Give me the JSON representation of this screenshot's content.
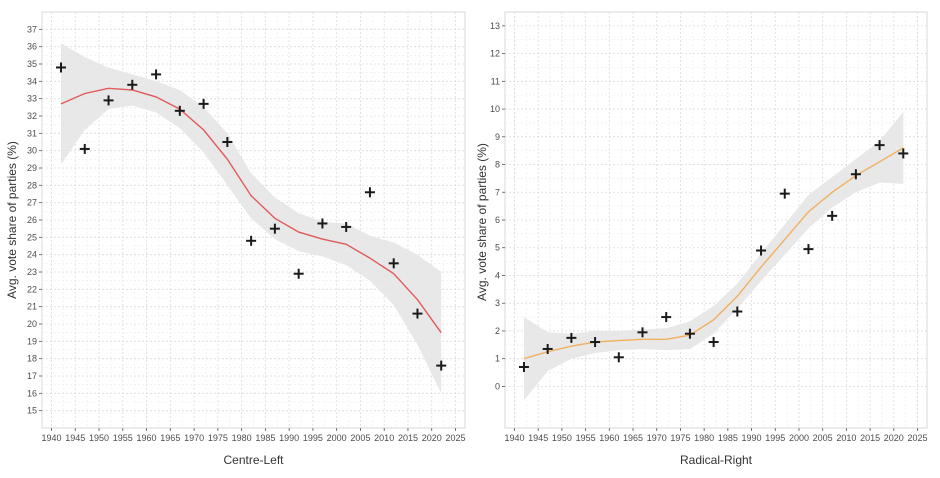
{
  "chart_data": [
    {
      "type": "scatter",
      "xlabel": "Centre-Left",
      "ylabel": "Avg. vote share of parties (%)",
      "xlim": [
        1938,
        2027
      ],
      "ylim": [
        14,
        38
      ],
      "xticks": [
        "1940",
        "1945",
        "1950",
        "1955",
        "1960",
        "1965",
        "1970",
        "1975",
        "1980",
        "1985",
        "1990",
        "1995",
        "2000",
        "2005",
        "2010",
        "2015",
        "2020",
        "2025"
      ],
      "yticks": [
        "15",
        "16",
        "17",
        "18",
        "19",
        "20",
        "21",
        "22",
        "23",
        "24",
        "25",
        "26",
        "27",
        "28",
        "29",
        "30",
        "31",
        "32",
        "33",
        "34",
        "35",
        "36",
        "37"
      ],
      "grid": true,
      "colors": {
        "smooth": "#e05a5a",
        "band": "#e6e6e6",
        "points": "#1a1a1a"
      },
      "series": [
        {
          "x": [
            1942,
            1947,
            1952,
            1957,
            1962,
            1967,
            1972,
            1977,
            1982,
            1987,
            1992,
            1997,
            2002,
            2007,
            2012,
            2017,
            2022
          ],
          "y": [
            34.8,
            30.1,
            32.9,
            33.8,
            34.4,
            32.3,
            32.7,
            30.5,
            24.8,
            25.5,
            22.9,
            25.8,
            25.6,
            27.6,
            23.5,
            20.6,
            17.6
          ]
        }
      ],
      "smooth": {
        "x": [
          1942,
          1947,
          1952,
          1957,
          1962,
          1967,
          1972,
          1977,
          1982,
          1987,
          1992,
          1997,
          2002,
          2007,
          2012,
          2017,
          2022
        ],
        "y": [
          32.7,
          33.3,
          33.6,
          33.5,
          33.1,
          32.4,
          31.2,
          29.5,
          27.4,
          26.1,
          25.3,
          24.9,
          24.6,
          23.8,
          22.9,
          21.4,
          19.5
        ],
        "lower": [
          29.2,
          31.2,
          32.4,
          32.6,
          32.2,
          31.3,
          29.9,
          28.0,
          26.1,
          24.9,
          24.2,
          23.9,
          23.4,
          22.5,
          21.1,
          18.8,
          16.0
        ],
        "upper": [
          36.2,
          35.4,
          34.8,
          34.4,
          34.0,
          33.5,
          32.5,
          31.0,
          28.7,
          27.3,
          26.4,
          25.9,
          25.8,
          25.1,
          24.7,
          24.0,
          23.0
        ]
      }
    },
    {
      "type": "scatter",
      "xlabel": "Radical-Right",
      "ylabel": "Avg. vote share of parties (%)",
      "xlim": [
        1938,
        2027
      ],
      "ylim": [
        -1.5,
        13.5
      ],
      "xticks": [
        "1940",
        "1945",
        "1950",
        "1955",
        "1960",
        "1965",
        "1970",
        "1975",
        "1980",
        "1985",
        "1990",
        "1995",
        "2000",
        "2005",
        "2010",
        "2015",
        "2020",
        "2025"
      ],
      "yticks": [
        "0",
        "1",
        "2",
        "3",
        "4",
        "5",
        "6",
        "7",
        "8",
        "9",
        "10",
        "11",
        "12",
        "13"
      ],
      "grid": true,
      "colors": {
        "smooth": "#f0b060",
        "band": "#e6e6e6",
        "points": "#1a1a1a"
      },
      "series": [
        {
          "x": [
            1942,
            1947,
            1952,
            1957,
            1962,
            1967,
            1972,
            1977,
            1982,
            1987,
            1992,
            1997,
            2002,
            2007,
            2012,
            2017,
            2022
          ],
          "y": [
            0.7,
            1.35,
            1.75,
            1.6,
            1.05,
            1.95,
            2.5,
            1.9,
            1.6,
            2.7,
            4.9,
            6.95,
            4.95,
            6.15,
            7.65,
            8.7,
            8.4
          ]
        }
      ],
      "smooth": {
        "x": [
          1942,
          1947,
          1952,
          1957,
          1962,
          1967,
          1972,
          1977,
          1982,
          1987,
          1992,
          1997,
          2002,
          2007,
          2012,
          2017,
          2022
        ],
        "y": [
          1.0,
          1.25,
          1.45,
          1.6,
          1.65,
          1.7,
          1.7,
          1.85,
          2.4,
          3.25,
          4.3,
          5.3,
          6.3,
          7.0,
          7.6,
          8.1,
          8.6
        ],
        "lower": [
          -0.5,
          0.55,
          1.0,
          1.2,
          1.3,
          1.35,
          1.3,
          1.35,
          1.9,
          2.8,
          3.8,
          4.75,
          5.7,
          6.45,
          7.0,
          7.35,
          7.3
        ],
        "upper": [
          2.5,
          1.95,
          1.9,
          2.0,
          2.0,
          2.05,
          2.1,
          2.35,
          2.9,
          3.7,
          4.8,
          5.85,
          6.9,
          7.55,
          8.2,
          8.85,
          9.9
        ]
      }
    }
  ]
}
